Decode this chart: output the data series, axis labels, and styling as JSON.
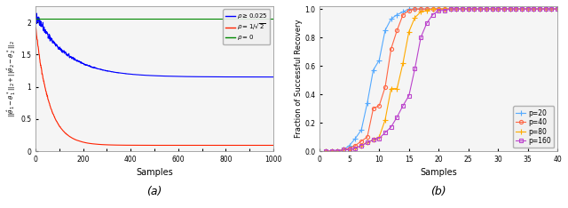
{
  "fig_width": 6.4,
  "fig_height": 2.34,
  "dpi": 100,
  "subplot_a": {
    "xlabel": "Samples",
    "xlim": [
      0,
      1000
    ],
    "ylim": [
      0,
      2.25
    ],
    "yticks": [
      0,
      0.5,
      1.0,
      1.5,
      2.0
    ],
    "xticks": [
      0,
      100,
      200,
      300,
      400,
      500,
      600,
      700,
      800,
      900,
      1000
    ],
    "caption": "(a)",
    "blue_color": "#0000FF",
    "red_color": "#FF2200",
    "green_color": "#008800",
    "blue_init": 2.12,
    "blue_final": 1.15,
    "blue_tau": 130,
    "blue_noise": 0.055,
    "blue_noise_tau": 90,
    "red_init": 1.95,
    "red_final": 0.09,
    "red_tau": 55,
    "red_noise": 0.025,
    "red_noise_tau": 45,
    "green_value": 2.05,
    "n_samples": 1000
  },
  "subplot_b": {
    "xlabel": "Samples",
    "ylabel": "Fraction of Successful Recovery",
    "xlim": [
      0,
      40
    ],
    "ylim": [
      0,
      1.02
    ],
    "xticks": [
      0,
      5,
      10,
      15,
      20,
      25,
      30,
      35,
      40
    ],
    "yticks": [
      0,
      0.2,
      0.4,
      0.6,
      0.8,
      1.0
    ],
    "caption": "(b)",
    "series": [
      {
        "p": 20,
        "color": "#55AAFF",
        "marker": "+",
        "x": [
          1,
          2,
          3,
          4,
          5,
          6,
          7,
          8,
          9,
          10,
          11,
          12,
          13,
          14,
          15,
          16,
          17,
          18,
          19,
          20,
          21,
          22,
          23,
          24,
          25,
          26,
          27,
          28,
          29,
          30,
          31,
          32,
          33,
          34,
          35,
          36,
          37,
          38,
          39,
          40
        ],
        "y": [
          0,
          0,
          0,
          0.01,
          0.04,
          0.09,
          0.15,
          0.34,
          0.57,
          0.64,
          0.85,
          0.93,
          0.96,
          0.98,
          1.0,
          1.0,
          1.0,
          1.0,
          1.0,
          1.0,
          1.0,
          1.0,
          1.0,
          1.0,
          1.0,
          1.0,
          1.0,
          1.0,
          1.0,
          1.0,
          1.0,
          1.0,
          1.0,
          1.0,
          1.0,
          1.0,
          1.0,
          1.0,
          1.0,
          1.0
        ]
      },
      {
        "p": 40,
        "color": "#FF6644",
        "marker": "o",
        "x": [
          1,
          2,
          3,
          4,
          5,
          6,
          7,
          8,
          9,
          10,
          11,
          12,
          13,
          14,
          15,
          16,
          17,
          18,
          19,
          20,
          21,
          22,
          23,
          24,
          25,
          26,
          27,
          28,
          29,
          30,
          31,
          32,
          33,
          34,
          35,
          36,
          37,
          38,
          39,
          40
        ],
        "y": [
          0,
          0,
          0,
          0.01,
          0.02,
          0.04,
          0.07,
          0.1,
          0.3,
          0.32,
          0.45,
          0.72,
          0.85,
          0.96,
          0.99,
          1.0,
          1.0,
          1.0,
          1.0,
          1.0,
          1.0,
          1.0,
          1.0,
          1.0,
          1.0,
          1.0,
          1.0,
          1.0,
          1.0,
          1.0,
          1.0,
          1.0,
          1.0,
          1.0,
          1.0,
          1.0,
          1.0,
          1.0,
          1.0,
          1.0
        ]
      },
      {
        "p": 80,
        "color": "#FFAA00",
        "marker": "+",
        "x": [
          1,
          2,
          3,
          4,
          5,
          6,
          7,
          8,
          9,
          10,
          11,
          12,
          13,
          14,
          15,
          16,
          17,
          18,
          19,
          20,
          21,
          22,
          23,
          24,
          25,
          26,
          27,
          28,
          29,
          30,
          31,
          32,
          33,
          34,
          35,
          36,
          37,
          38,
          39,
          40
        ],
        "y": [
          0,
          0,
          0,
          0.01,
          0.01,
          0.02,
          0.04,
          0.06,
          0.08,
          0.1,
          0.22,
          0.44,
          0.44,
          0.62,
          0.84,
          0.94,
          0.98,
          0.99,
          1.0,
          1.0,
          1.0,
          1.0,
          1.0,
          1.0,
          1.0,
          1.0,
          1.0,
          1.0,
          1.0,
          1.0,
          1.0,
          1.0,
          1.0,
          1.0,
          1.0,
          1.0,
          1.0,
          1.0,
          1.0,
          1.0
        ]
      },
      {
        "p": 160,
        "color": "#BB44CC",
        "marker": "s",
        "x": [
          1,
          2,
          3,
          4,
          5,
          6,
          7,
          8,
          9,
          10,
          11,
          12,
          13,
          14,
          15,
          16,
          17,
          18,
          19,
          20,
          21,
          22,
          23,
          24,
          25,
          26,
          27,
          28,
          29,
          30,
          31,
          32,
          33,
          34,
          35,
          36,
          37,
          38,
          39,
          40
        ],
        "y": [
          0,
          0,
          0,
          0.01,
          0.01,
          0.02,
          0.04,
          0.06,
          0.08,
          0.09,
          0.13,
          0.17,
          0.24,
          0.32,
          0.39,
          0.58,
          0.8,
          0.9,
          0.96,
          0.99,
          0.99,
          1.0,
          1.0,
          1.0,
          1.0,
          1.0,
          1.0,
          1.0,
          1.0,
          1.0,
          1.0,
          1.0,
          1.0,
          1.0,
          1.0,
          1.0,
          1.0,
          1.0,
          1.0,
          1.0
        ]
      }
    ]
  }
}
